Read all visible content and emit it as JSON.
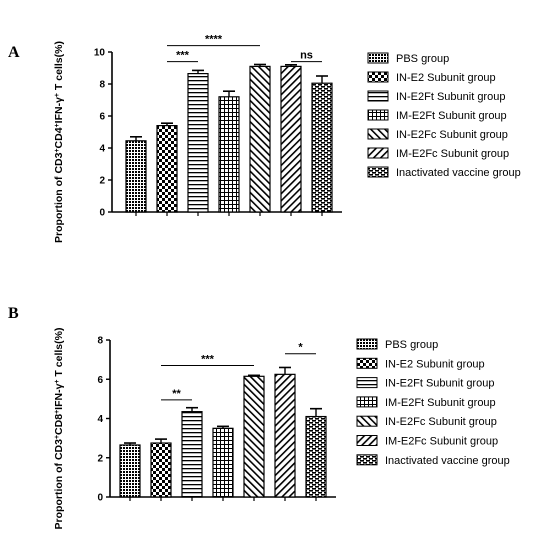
{
  "chart_data": [
    {
      "type": "bar",
      "panel": "A",
      "ylabel_parts": [
        "Proportion of CD3",
        "+",
        "CD4",
        "+",
        "IFN-γ",
        "+",
        " T cells(%)"
      ],
      "ylim": [
        0,
        10
      ],
      "yticks": [
        "0",
        "2",
        "4",
        "6",
        "8",
        "10"
      ],
      "grid": false,
      "legend_position": "right",
      "categories": [
        "PBS group",
        "IN-E2 Subunit group",
        "IN-E2Ft Subunit group",
        "IM-E2Ft Subunit group",
        "IN-E2Fc Subunit group",
        "IM-E2Fc Subunit group",
        "Inactivated vaccine group"
      ],
      "values": [
        4.45,
        5.4,
        8.65,
        7.2,
        9.1,
        9.1,
        8.05
      ],
      "errors": [
        0.25,
        0.15,
        0.2,
        0.35,
        0.12,
        0.1,
        0.45
      ],
      "significance": [
        {
          "label": "***",
          "from": 1,
          "to": 2,
          "y": 9.4
        },
        {
          "label": "****",
          "from": 1,
          "to": 4,
          "y": 10.4
        },
        {
          "label": "ns",
          "from": 5,
          "to": 6,
          "y": 9.4
        }
      ]
    },
    {
      "type": "bar",
      "panel": "B",
      "ylabel_parts": [
        "Proportion of CD3",
        "+",
        "CD8",
        "+",
        "IFN-γ",
        "+",
        " T cells(%)"
      ],
      "ylim": [
        0,
        8
      ],
      "yticks": [
        "0",
        "2",
        "4",
        "6",
        "8"
      ],
      "grid": false,
      "legend_position": "right",
      "categories": [
        "PBS group",
        "IN-E2 Subunit group",
        "IN-E2Ft Subunit group",
        "IM-E2Ft Subunit group",
        "IN-E2Fc Subunit group",
        "IM-E2Fc Subunit group",
        "Inactivated vaccine group"
      ],
      "values": [
        2.65,
        2.75,
        4.35,
        3.5,
        6.15,
        6.25,
        4.1
      ],
      "errors": [
        0.1,
        0.2,
        0.2,
        0.1,
        0.05,
        0.35,
        0.4
      ],
      "significance": [
        {
          "label": "**",
          "from": 1,
          "to": 2,
          "y": 4.95
        },
        {
          "label": "***",
          "from": 1,
          "to": 4,
          "y": 6.7
        },
        {
          "label": "*",
          "from": 5,
          "to": 6,
          "y": 7.3
        }
      ]
    }
  ],
  "pattern_names": [
    "dense-dots",
    "checker",
    "horizontal-lines",
    "grid",
    "diagonal-up",
    "diagonal-down",
    "dashes"
  ]
}
